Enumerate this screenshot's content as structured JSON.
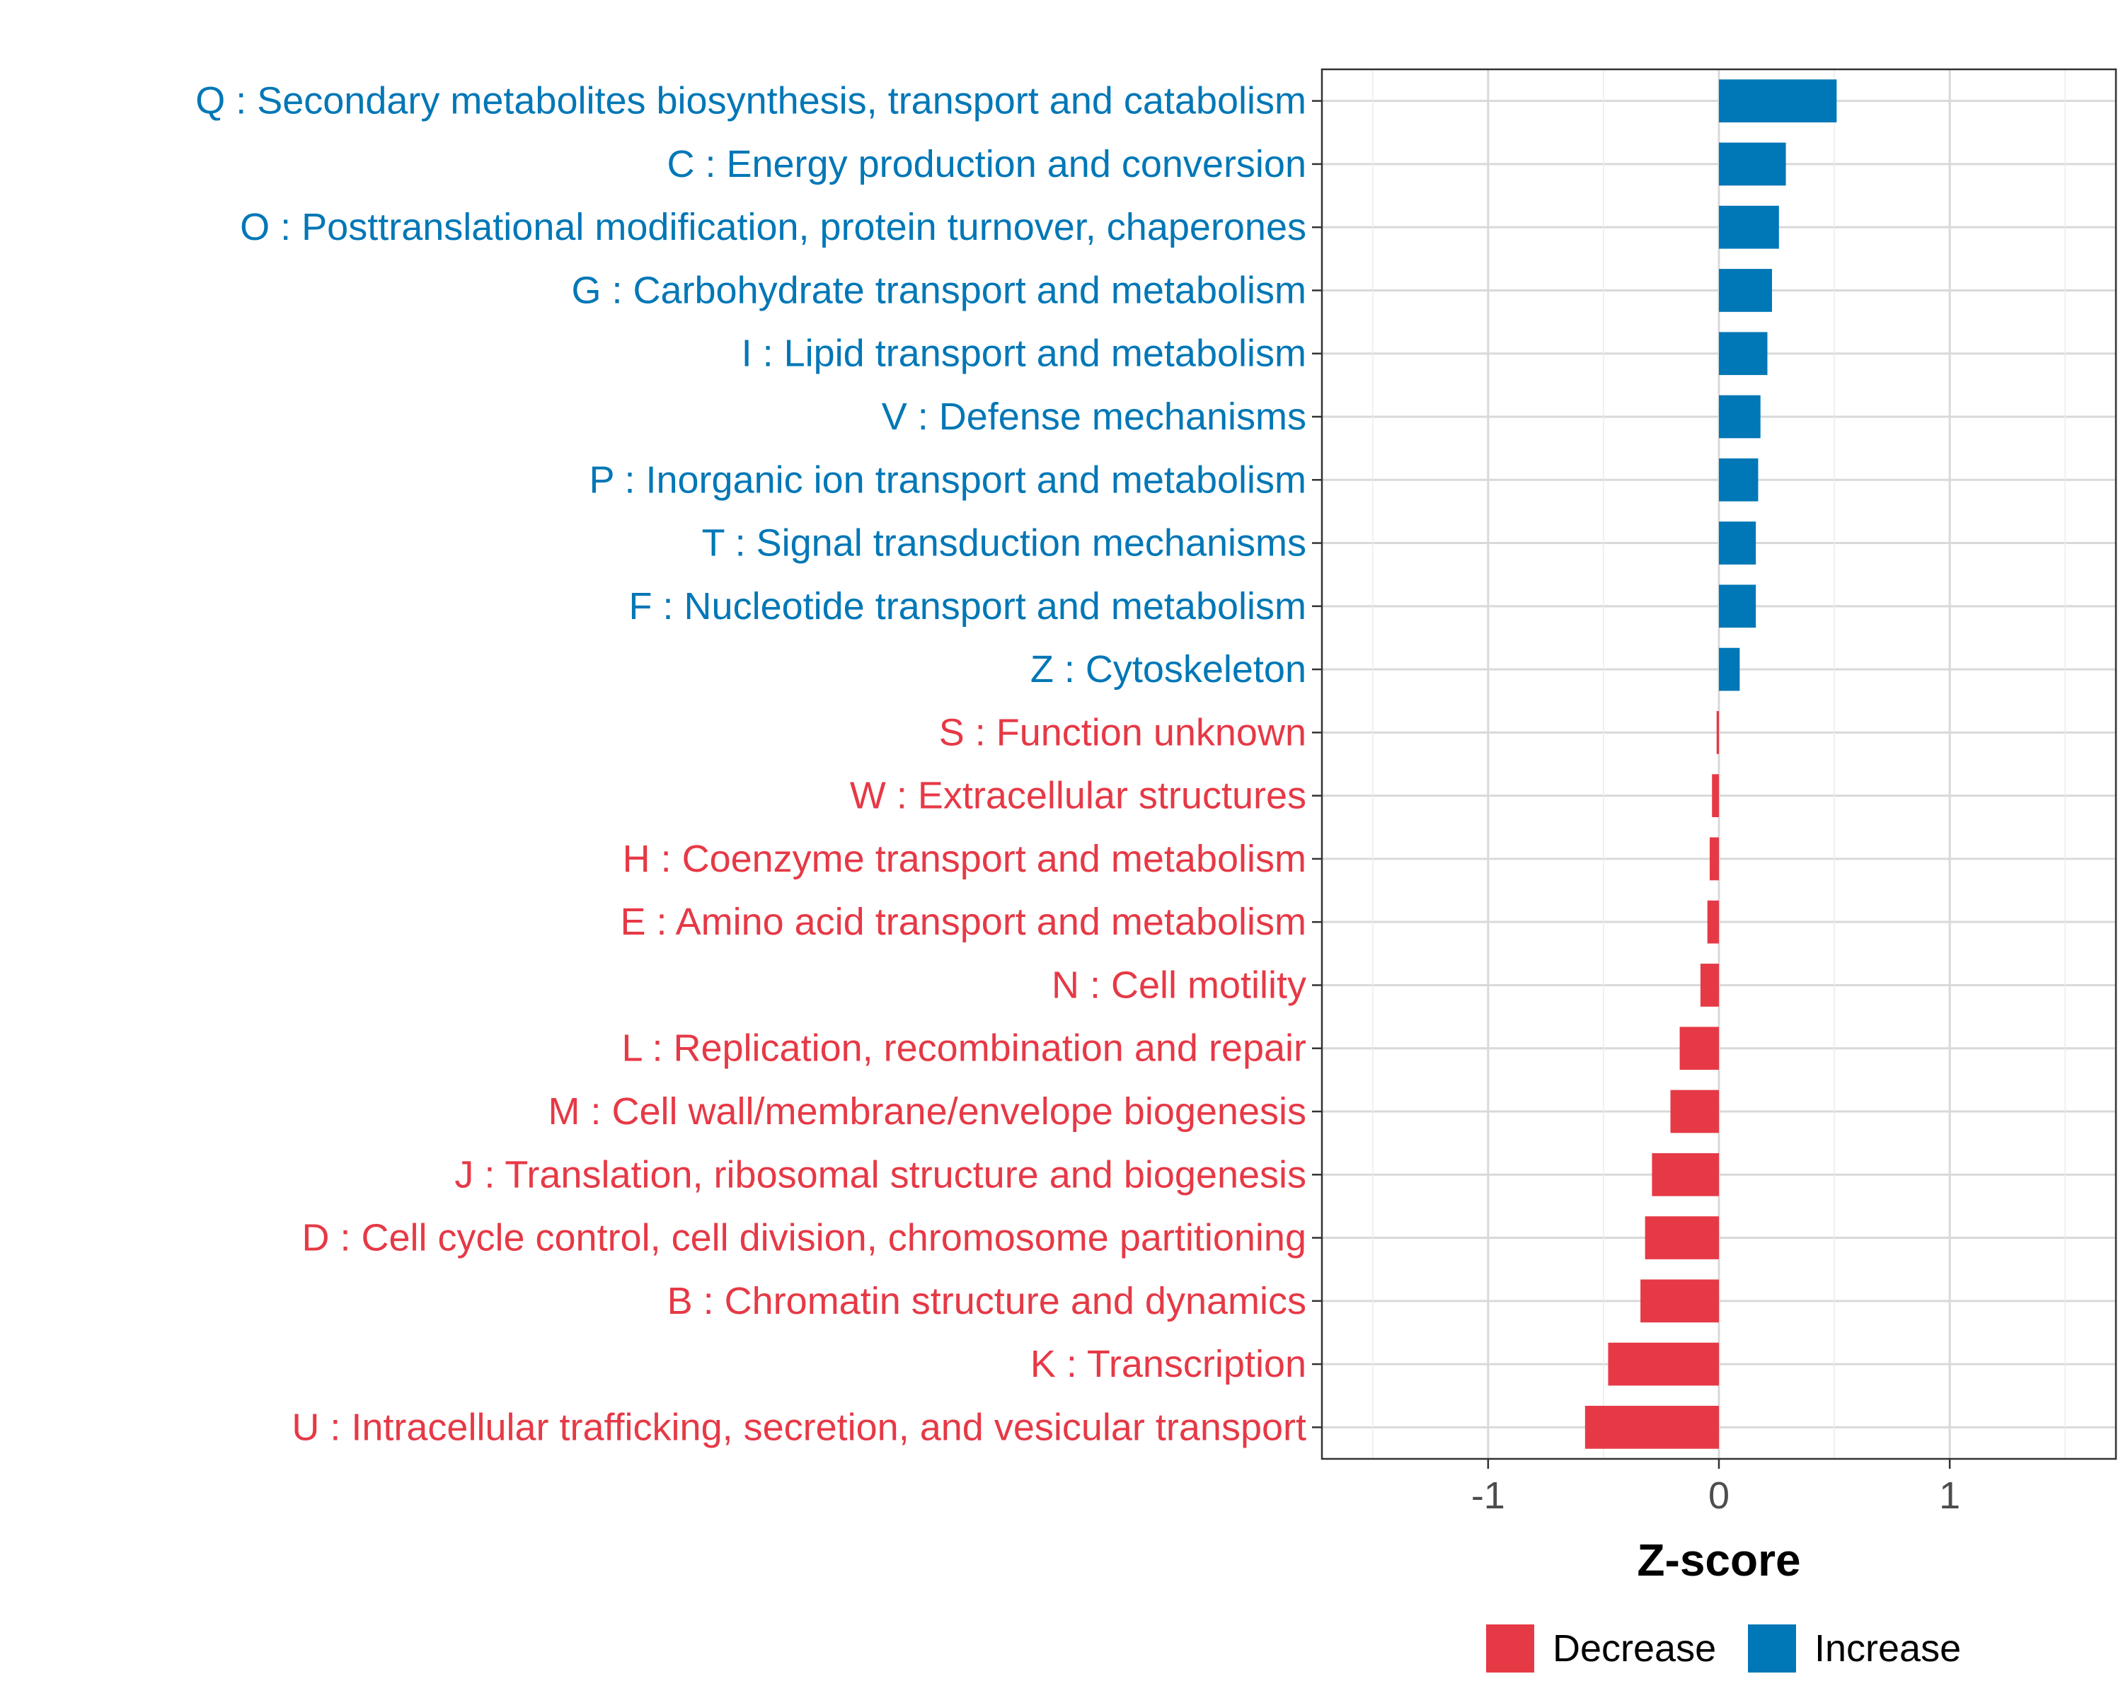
{
  "chart_data": {
    "type": "bar",
    "orientation": "horizontal",
    "xlabel": "Z-score",
    "xlim": [
      -1.72,
      1.72
    ],
    "x_ticks": [
      -1,
      0,
      1
    ],
    "x_tick_labels": [
      "-1",
      "0",
      "1"
    ],
    "grid": true,
    "legend_position": "bottom",
    "legend": [
      {
        "label": "Decrease",
        "color": "#E63946"
      },
      {
        "label": "Increase",
        "color": "#0077B6"
      }
    ],
    "colors": {
      "decrease": "#E63946",
      "increase": "#0077B6"
    },
    "categories": [
      "Q : Secondary metabolites biosynthesis, transport and catabolism",
      "C : Energy production and conversion",
      "O : Posttranslational modification, protein turnover, chaperones",
      "G : Carbohydrate transport and metabolism",
      "I : Lipid transport and metabolism",
      "V : Defense mechanisms",
      "P : Inorganic ion transport and metabolism",
      "T : Signal transduction mechanisms",
      "F : Nucleotide transport and metabolism",
      "Z : Cytoskeleton",
      "S : Function unknown",
      "W : Extracellular structures",
      "H : Coenzyme transport and metabolism",
      "E : Amino acid transport and metabolism",
      "N : Cell motility",
      "L : Replication, recombination and repair",
      "M : Cell wall/membrane/envelope biogenesis",
      "J : Translation, ribosomal structure and biogenesis",
      "D : Cell cycle control, cell division, chromosome partitioning",
      "B : Chromatin structure and dynamics",
      "K : Transcription",
      "U : Intracellular trafficking, secretion, and vesicular transport"
    ],
    "values": [
      0.51,
      0.29,
      0.26,
      0.23,
      0.21,
      0.18,
      0.17,
      0.16,
      0.16,
      0.09,
      -0.01,
      -0.03,
      -0.04,
      -0.05,
      -0.08,
      -0.17,
      -0.21,
      -0.29,
      -0.32,
      -0.34,
      -0.48,
      -0.58
    ],
    "groups": [
      "Increase",
      "Increase",
      "Increase",
      "Increase",
      "Increase",
      "Increase",
      "Increase",
      "Increase",
      "Increase",
      "Increase",
      "Decrease",
      "Decrease",
      "Decrease",
      "Decrease",
      "Decrease",
      "Decrease",
      "Decrease",
      "Decrease",
      "Decrease",
      "Decrease",
      "Decrease",
      "Decrease"
    ]
  }
}
